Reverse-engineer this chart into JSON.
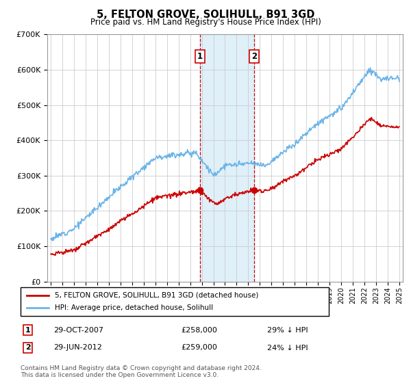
{
  "title": "5, FELTON GROVE, SOLIHULL, B91 3GD",
  "subtitle": "Price paid vs. HM Land Registry's House Price Index (HPI)",
  "legend_line1": "5, FELTON GROVE, SOLIHULL, B91 3GD (detached house)",
  "legend_line2": "HPI: Average price, detached house, Solihull",
  "annotation1_label": "1",
  "annotation1_date": "29-OCT-2007",
  "annotation1_price": "£258,000",
  "annotation1_hpi": "29% ↓ HPI",
  "annotation2_label": "2",
  "annotation2_date": "29-JUN-2012",
  "annotation2_price": "£259,000",
  "annotation2_hpi": "24% ↓ HPI",
  "footnote": "Contains HM Land Registry data © Crown copyright and database right 2024.\nThis data is licensed under the Open Government Licence v3.0.",
  "hpi_color": "#6ab4e8",
  "price_color": "#cc0000",
  "shade_color": "#d8edf8",
  "marker1_x": 2007.83,
  "marker2_x": 2012.5,
  "marker1_y": 258000,
  "marker2_y": 259000,
  "shade_x1": 2007.83,
  "shade_x2": 2012.5,
  "ylim": [
    0,
    700000
  ],
  "xlim_start": 1994.7,
  "xlim_end": 2025.3
}
